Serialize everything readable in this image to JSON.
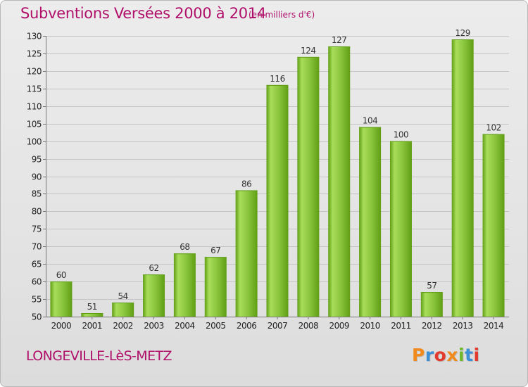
{
  "header": {
    "title": "Subventions Versées 2000 à 2014",
    "subtitle": "(en milliers d'€)"
  },
  "footer": {
    "commune": "LONGEVILLE-LèS-METZ",
    "brand": "Proxiti",
    "brand_colors": [
      "#f08a1c",
      "#3a8fd6",
      "#e23b2e",
      "#f08a1c",
      "#6fb82a",
      "#3a8fd6",
      "#e23b2e"
    ]
  },
  "colors": {
    "title": "#b0106a",
    "bar_light": "#a8dd5a",
    "bar_dark": "#5f9e14",
    "grid": "#c4c4c4",
    "axis": "#777777"
  },
  "chart_data": {
    "type": "bar",
    "title": "Subventions Versées 2000 à 2014",
    "subtitle": "(en milliers d'€)",
    "xlabel": "",
    "ylabel": "",
    "categories": [
      "2000",
      "2001",
      "2002",
      "2003",
      "2004",
      "2005",
      "2006",
      "2007",
      "2008",
      "2009",
      "2010",
      "2011",
      "2012",
      "2013",
      "2014"
    ],
    "values": [
      60,
      51,
      54,
      62,
      68,
      67,
      86,
      116,
      124,
      127,
      104,
      100,
      57,
      129,
      102
    ],
    "ylim": [
      50,
      130
    ],
    "yticks": [
      50,
      55,
      60,
      65,
      70,
      75,
      80,
      85,
      90,
      95,
      100,
      105,
      110,
      115,
      120,
      125,
      130
    ],
    "grid": true,
    "legend": "none"
  }
}
